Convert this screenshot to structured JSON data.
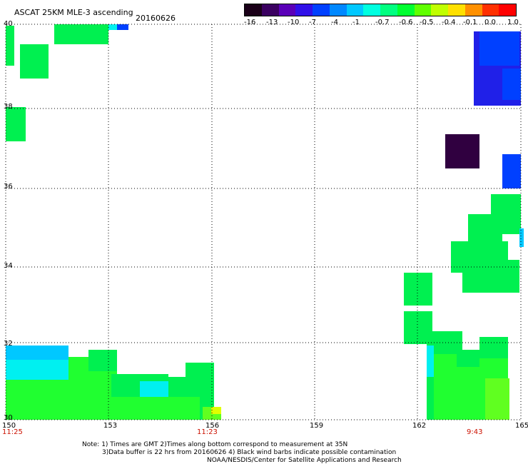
{
  "title": {
    "product": "ASCAT 25KM MLE-3 ascending",
    "date": "20160626"
  },
  "colorbar": {
    "ticks": [
      "-16",
      "-13",
      "-10",
      "-7",
      "-4",
      "-1",
      "-0.7",
      "-0.6",
      "-0.5",
      "-0.4",
      "-0.1",
      "0.0",
      "1.0"
    ],
    "colors": [
      "#1a0018",
      "#3a0060",
      "#5a00b8",
      "#3010e8",
      "#0040ff",
      "#0088ff",
      "#00c8ff",
      "#00ffe0",
      "#00ff80",
      "#00ff30",
      "#60ff00",
      "#c0ff00",
      "#ffe000",
      "#ff9000",
      "#ff3000",
      "#ff0000"
    ]
  },
  "axes": {
    "lat_labels": [
      "40",
      "38",
      "36",
      "34",
      "32",
      "30"
    ],
    "lon_labels": [
      "150",
      "153",
      "156",
      "159",
      "162",
      "165"
    ],
    "lon_range": [
      150,
      165
    ],
    "lat_range": [
      30,
      40
    ]
  },
  "time_labels": [
    "11:25",
    "11:23",
    "9:43"
  ],
  "notes": {
    "line1": "Note: 1) Times are GMT 2)Times along bottom correspond to measurement at 35N",
    "line2": "3)Data buffer is 22 hrs from 20160626 4) Black wind barbs indicate possible contamination",
    "line3": "NOAA/NESDIS/Center for Satellite Applications and Research"
  },
  "colors": {
    "green": "#00f050",
    "bright_green": "#20ff30",
    "lime": "#60ff20",
    "cyan": "#00f0f0",
    "light_blue": "#00c8ff",
    "blue": "#0040ff",
    "deep_blue": "#2020e8",
    "dark": "#300040",
    "yellow": "#e0ff00"
  }
}
